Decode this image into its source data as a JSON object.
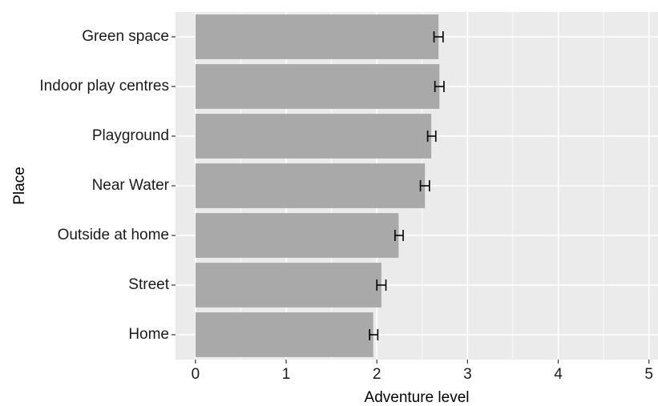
{
  "chart_data": {
    "type": "bar",
    "orientation": "horizontal",
    "xlabel": "Adventure level",
    "ylabel": "Place",
    "xlim": [
      -0.22,
      5.1
    ],
    "x_ticks": [
      0,
      1,
      2,
      3,
      4,
      5
    ],
    "grid": true,
    "legend": "none",
    "colors": {
      "panel": "#EBEBEB",
      "bar": "#A9A9A9",
      "grid": "#FFFFFF",
      "errorbar": "#000000"
    },
    "categories": [
      "Green space",
      "Indoor play centres",
      "Playground",
      "Near Water",
      "Outside at home",
      "Street",
      "Home"
    ],
    "values": [
      2.68,
      2.69,
      2.6,
      2.53,
      2.24,
      2.05,
      1.96
    ],
    "error_low": [
      2.63,
      2.64,
      2.56,
      2.48,
      2.2,
      2.0,
      1.92
    ],
    "error_high": [
      2.73,
      2.74,
      2.65,
      2.58,
      2.29,
      2.1,
      2.01
    ]
  }
}
